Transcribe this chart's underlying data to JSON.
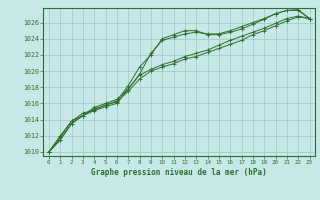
{
  "title": "Graphe pression niveau de la mer (hPa)",
  "background_color": "#c8e8e8",
  "grid_color": "#9ec8c8",
  "line_color": "#2d6e2d",
  "xlim": [
    -0.5,
    23.5
  ],
  "ylim": [
    1009.5,
    1027.8
  ],
  "yticks": [
    1010,
    1012,
    1014,
    1016,
    1018,
    1020,
    1022,
    1024,
    1026
  ],
  "xticks": [
    0,
    1,
    2,
    3,
    4,
    5,
    6,
    7,
    8,
    9,
    10,
    11,
    12,
    13,
    14,
    15,
    16,
    17,
    18,
    19,
    20,
    21,
    22,
    23
  ],
  "series": [
    [
      1010.0,
      1012.0,
      1013.8,
      1014.8,
      1015.2,
      1015.8,
      1016.3,
      1018.2,
      1020.5,
      1022.0,
      1024.0,
      1024.5,
      1025.0,
      1025.0,
      1024.5,
      1024.5,
      1024.8,
      1025.2,
      1025.8,
      1026.4,
      1027.1,
      1027.5,
      1027.5,
      1026.5
    ],
    [
      1010.0,
      1011.8,
      1013.8,
      1014.5,
      1015.1,
      1015.6,
      1016.0,
      1017.8,
      1019.5,
      1020.2,
      1020.8,
      1021.2,
      1021.8,
      1022.2,
      1022.6,
      1023.2,
      1023.8,
      1024.3,
      1024.8,
      1025.3,
      1025.9,
      1026.5,
      1026.8,
      1026.5
    ],
    [
      1010.0,
      1011.5,
      1013.5,
      1014.5,
      1015.3,
      1015.8,
      1016.2,
      1017.5,
      1019.0,
      1020.0,
      1020.5,
      1020.9,
      1021.5,
      1021.8,
      1022.3,
      1022.8,
      1023.3,
      1023.8,
      1024.5,
      1025.0,
      1025.6,
      1026.2,
      1026.7,
      1026.5
    ],
    [
      1010.0,
      1011.5,
      1013.5,
      1014.5,
      1015.5,
      1016.0,
      1016.5,
      1017.8,
      1019.6,
      1022.2,
      1023.8,
      1024.2,
      1024.6,
      1024.8,
      1024.6,
      1024.6,
      1025.0,
      1025.5,
      1026.0,
      1026.5,
      1027.1,
      1027.5,
      1027.6,
      1026.5
    ]
  ]
}
